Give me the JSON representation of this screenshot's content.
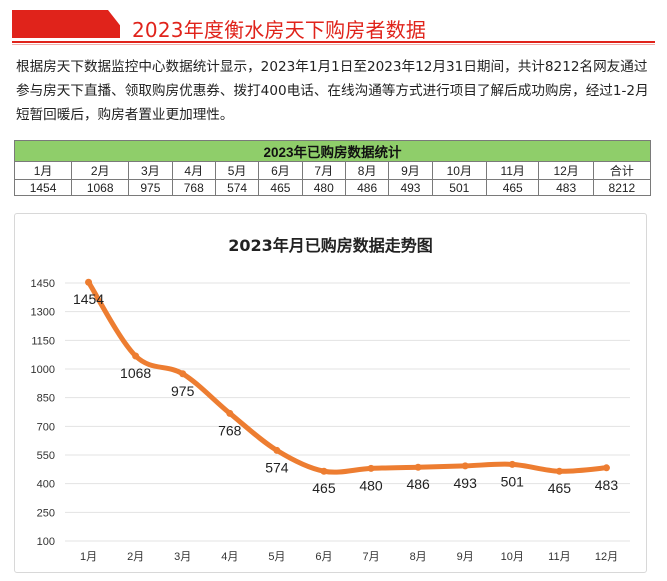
{
  "header": {
    "title": "2023年度衡水房天下购房者数据"
  },
  "intro": {
    "text": "根据房天下数据监控中心数据统计显示，2023年1月1日至2023年12月31日期间，共计8212名网友通过参与房天下直播、领取购房优惠券、拨打400电话、在线沟通等方式进行项目了解后成功购房，经过1-2月短暂回暖后，购房者置业更加理性。"
  },
  "table": {
    "title": "2023年已购房数据统计",
    "headers": [
      "1月",
      "2月",
      "3月",
      "4月",
      "5月",
      "6月",
      "7月",
      "8月",
      "9月",
      "10月",
      "11月",
      "12月",
      "合计"
    ],
    "values": [
      "1454",
      "1068",
      "975",
      "768",
      "574",
      "465",
      "480",
      "486",
      "493",
      "501",
      "465",
      "483",
      "8212"
    ]
  },
  "colors": {
    "accent_red": "#e0231b",
    "table_header_green": "#8fce6a",
    "line_orange": "#ed7d31"
  },
  "chart_data": {
    "type": "line",
    "title": "2023年月已购房数据走势图",
    "categories": [
      "1月",
      "2月",
      "3月",
      "4月",
      "5月",
      "6月",
      "7月",
      "8月",
      "9月",
      "10月",
      "11月",
      "12月"
    ],
    "values": [
      1454,
      1068,
      975,
      768,
      574,
      465,
      480,
      486,
      493,
      501,
      465,
      483
    ],
    "yticks": [
      100,
      250,
      400,
      550,
      700,
      850,
      1000,
      1150,
      1300,
      1450
    ],
    "ylim": [
      100,
      1450
    ],
    "grid": true,
    "smooth": true,
    "data_labels": true
  }
}
